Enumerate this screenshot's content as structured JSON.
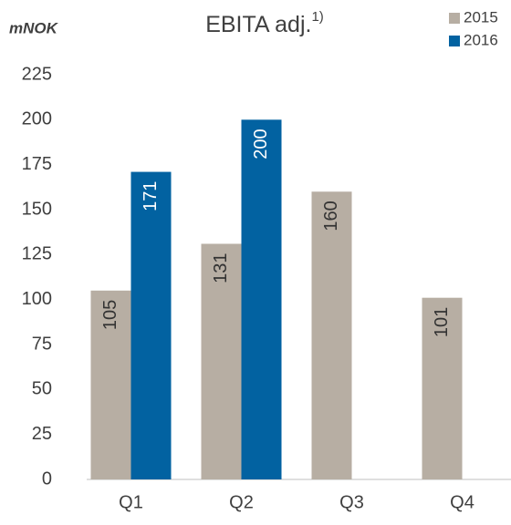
{
  "chart_data": {
    "type": "bar",
    "title": "EBITA adj.",
    "title_note": "1)",
    "y_axis_label": "mNOK",
    "categories": [
      "Q1",
      "Q2",
      "Q3",
      "Q4"
    ],
    "series": [
      {
        "name": "2015",
        "color": "#b7aea3",
        "label_color": "#333333",
        "values": [
          105,
          131,
          160,
          101
        ]
      },
      {
        "name": "2016",
        "color": "#0262a1",
        "label_color": "#ffffff",
        "values": [
          171,
          200,
          null,
          null
        ]
      }
    ],
    "ylim": [
      0,
      225
    ],
    "yticks": [
      0,
      25,
      50,
      75,
      100,
      125,
      150,
      175,
      200,
      225
    ],
    "grid": false,
    "legend": "top-right"
  }
}
